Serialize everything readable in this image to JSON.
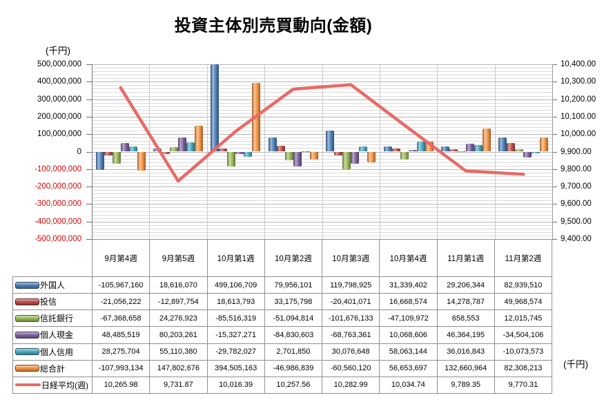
{
  "title": "投資主体別売買動向(金額)",
  "labels": {
    "left_unit": "(千円)",
    "right_unit": "(千円)"
  },
  "chart_data": {
    "type": "combo-bar-line",
    "title": "投資主体別売買動向(金額)",
    "categories": [
      "9月第4週",
      "9月第5週",
      "10月第1週",
      "10月第2週",
      "10月第3週",
      "10月第4週",
      "11月第1週",
      "11月第2週"
    ],
    "bar_series": [
      {
        "name": "外国人",
        "color": "#4F81BD",
        "values": [
          -105967160,
          18616070,
          499106709,
          79956101,
          119798925,
          31339402,
          29206344,
          82939510
        ]
      },
      {
        "name": "投信",
        "color": "#C0504D",
        "values": [
          -21056222,
          -12897754,
          18613793,
          33175798,
          -20401071,
          16668574,
          14278787,
          49968574
        ]
      },
      {
        "name": "信託銀行",
        "color": "#9BBB59",
        "values": [
          -67368658,
          24276923,
          -85516319,
          -51094814,
          -101676133,
          -47109972,
          658553,
          12015745
        ]
      },
      {
        "name": "個人現金",
        "color": "#8064A2",
        "values": [
          48485519,
          80203261,
          -15327271,
          -84830603,
          -68763361,
          10068606,
          46364195,
          -34504106
        ]
      },
      {
        "name": "個人信用",
        "color": "#4BACC6",
        "values": [
          28275704,
          55110380,
          -29782027,
          2701850,
          30076648,
          58063144,
          36016843,
          -10073573
        ]
      },
      {
        "name": "総合計",
        "color": "#F79646",
        "values": [
          -107993134,
          147802676,
          394505163,
          -46986839,
          -60560120,
          56653697,
          132660964,
          82308213
        ]
      }
    ],
    "line_series": {
      "name": "日経平均(週)",
      "color": "#E86A66",
      "values": [
        10265.98,
        9731.87,
        10016.39,
        10257.56,
        10282.99,
        10034.74,
        9789.35,
        9770.31
      ]
    },
    "left_axis": {
      "unit": "(千円)",
      "min": -500000000,
      "max": 500000000,
      "major_step": 100000000,
      "minor_step": 20000000,
      "negative_label_color": "#dd0000"
    },
    "right_axis": {
      "unit": "(千円)",
      "min": 9400,
      "max": 10400,
      "step": 100
    },
    "grid": true,
    "legend_position": "table-left"
  },
  "table": {
    "column_headers": [
      "9月第4週",
      "9月第5週",
      "10月第1週",
      "10月第2週",
      "10月第3週",
      "10月第4週",
      "11月第1週",
      "11月第2週"
    ],
    "rows": [
      {
        "label": "外国人",
        "icon": "bar",
        "cells": [
          "-105,967,160",
          "18,616,070",
          "499,106,709",
          "79,956,101",
          "119,798,925",
          "31,339,402",
          "29,206,344",
          "82,939,510"
        ]
      },
      {
        "label": "投信",
        "icon": "bar",
        "cells": [
          "-21,056,222",
          "-12,897,754",
          "18,613,793",
          "33,175,798",
          "-20,401,071",
          "16,668,574",
          "14,278,787",
          "49,968,574"
        ]
      },
      {
        "label": "信託銀行",
        "icon": "bar",
        "cells": [
          "-67,368,658",
          "24,276,923",
          "-85,516,319",
          "-51,094,814",
          "-101,676,133",
          "-47,109,972",
          "658,553",
          "12,015,745"
        ]
      },
      {
        "label": "個人現金",
        "icon": "bar",
        "cells": [
          "48,485,519",
          "80,203,261",
          "-15,327,271",
          "-84,830,603",
          "-68,763,361",
          "10,068,606",
          "46,364,195",
          "-34,504,106"
        ]
      },
      {
        "label": "個人信用",
        "icon": "bar",
        "cells": [
          "28,275,704",
          "55,110,380",
          "-29,782,027",
          "2,701,850",
          "30,076,648",
          "58,063,144",
          "36,016,843",
          "-10,073,573"
        ]
      },
      {
        "label": "総合計",
        "icon": "bar",
        "cells": [
          "-107,993,134",
          "147,802,676",
          "394,505,163",
          "-46,986,839",
          "-60,560,120",
          "56,653,697",
          "132,660,964",
          "82,308,213"
        ]
      },
      {
        "label": "日経平均(週)",
        "icon": "line",
        "cells": [
          "10,265.98",
          "9,731.87",
          "10,016.39",
          "10,257.56",
          "10,282.99",
          "10,034.74",
          "9,789.35",
          "9,770.31"
        ]
      }
    ]
  }
}
